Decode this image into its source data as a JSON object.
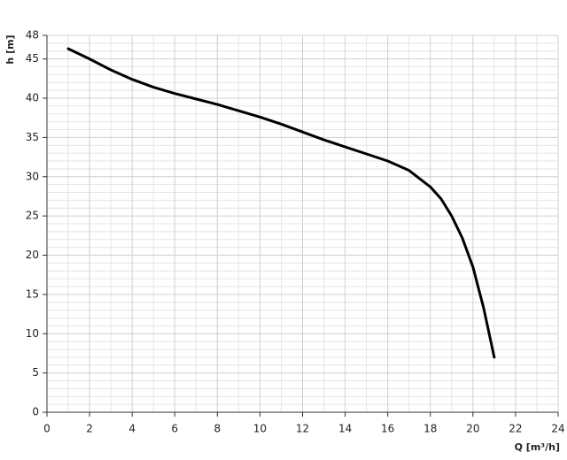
{
  "chart_data": {
    "type": "line",
    "x_label": "Q [m³/h]",
    "y_label": "h [m]",
    "x": [
      1,
      2,
      3,
      4,
      5,
      6,
      7,
      8,
      9,
      10,
      11,
      12,
      13,
      14,
      15,
      16,
      17,
      18,
      18.5,
      19,
      19.5,
      20,
      20.5,
      21
    ],
    "series": [
      {
        "color": "#000000",
        "values": [
          46.3,
          45,
          43.6,
          42.4,
          41.4,
          40.6,
          39.9,
          39.2,
          38.4,
          37.6,
          36.7,
          35.7,
          34.7,
          33.8,
          32.9,
          32,
          30.8,
          28.7,
          27.2,
          25,
          22.2,
          18.5,
          13.3,
          7
        ]
      }
    ],
    "xlim": [
      0,
      24
    ],
    "ylim": [
      0,
      48
    ],
    "xticks": [
      0,
      2,
      4,
      6,
      8,
      10,
      12,
      14,
      16,
      18,
      20,
      22,
      24
    ],
    "yticks": [
      0,
      5,
      10,
      15,
      20,
      25,
      30,
      35,
      40,
      45,
      48
    ],
    "x_minor_ticks": [
      1,
      3,
      5,
      7,
      9,
      11,
      13,
      15,
      17,
      19,
      21,
      23
    ],
    "y_minor_ticks": [
      1,
      2,
      3,
      4,
      6,
      7,
      8,
      9,
      11,
      12,
      13,
      14,
      16,
      17,
      18,
      19,
      21,
      22,
      23,
      24,
      26,
      27,
      28,
      29,
      31,
      32,
      33,
      34,
      36,
      37,
      38,
      39,
      41,
      42,
      43,
      44,
      46,
      47
    ],
    "grid": true
  }
}
